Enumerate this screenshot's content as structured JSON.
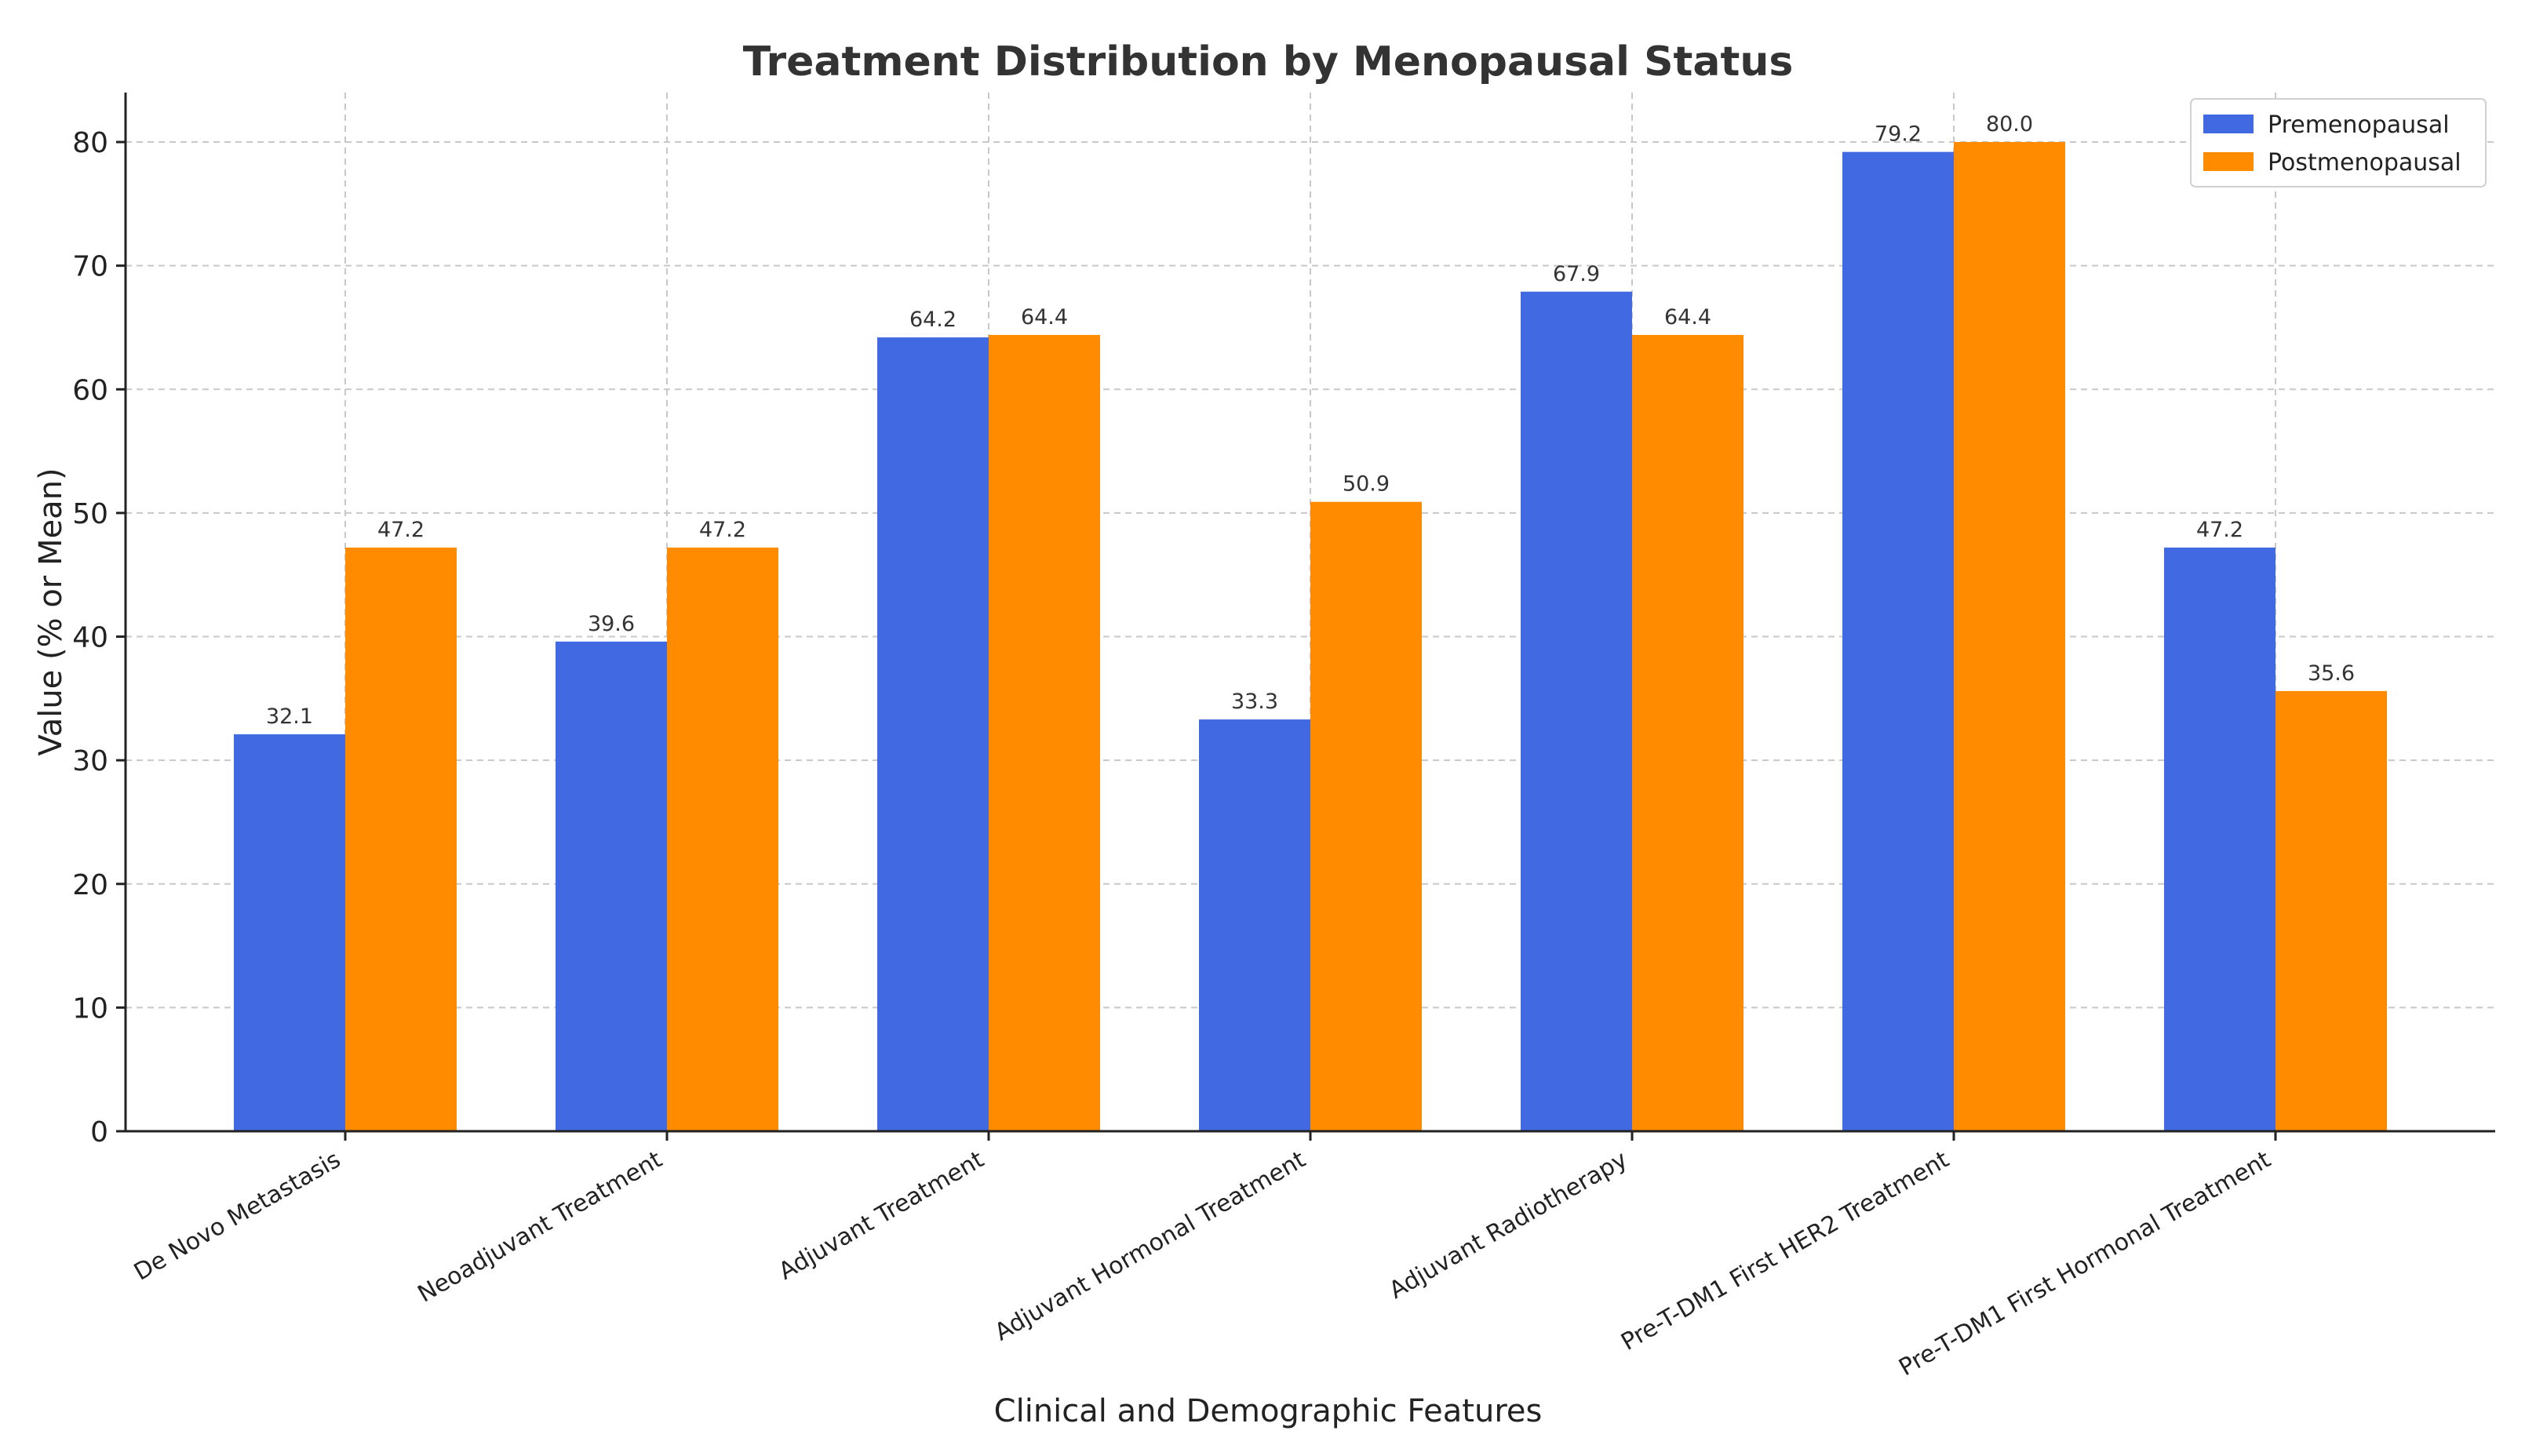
{
  "chart_data": {
    "type": "bar",
    "title": "Treatment Distribution by Menopausal Status",
    "xlabel": "Clinical and Demographic Features",
    "ylabel": "Value (% or Mean)",
    "ylim": [
      0,
      84
    ],
    "yticks": [
      0,
      10,
      20,
      30,
      40,
      50,
      60,
      70,
      80
    ],
    "grid": true,
    "legend_position": "top-right",
    "categories": [
      "De Novo Metastasis",
      "Neoadjuvant Treatment",
      "Adjuvant Treatment",
      "Adjuvant Hormonal Treatment",
      "Adjuvant Radiotherapy",
      "Pre-T-DM1 First HER2 Treatment",
      "Pre-T-DM1 First Hormonal Treatment"
    ],
    "series": [
      {
        "name": "Premenopausal",
        "color": "#4169E1",
        "values": [
          32.1,
          39.6,
          64.2,
          33.3,
          67.9,
          79.2,
          47.2
        ],
        "labels": [
          "32.1",
          "39.6",
          "64.2",
          "33.3",
          "67.9",
          "79.2",
          "47.2"
        ]
      },
      {
        "name": "Postmenopausal",
        "color": "#FF8C00",
        "values": [
          47.2,
          47.2,
          64.4,
          50.9,
          64.4,
          80.0,
          35.6
        ],
        "labels": [
          "47.2",
          "47.2",
          "64.4",
          "50.9",
          "64.4",
          "80.0",
          "35.6"
        ]
      }
    ]
  }
}
